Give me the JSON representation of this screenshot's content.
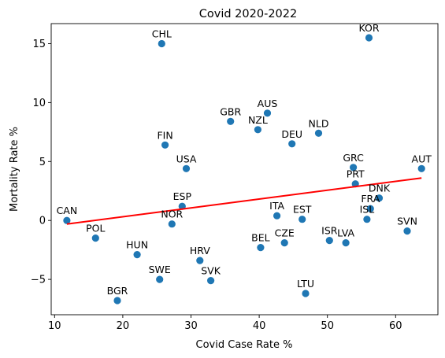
{
  "chart_data": {
    "type": "scatter",
    "title": "Covid 2020-2022",
    "xlabel": "Covid Case Rate %",
    "ylabel": "Mortality Rate %",
    "xlim": [
      9.5,
      66.2
    ],
    "ylim": [
      -8.0,
      16.7
    ],
    "xticks": [
      10,
      20,
      30,
      40,
      50,
      60
    ],
    "yticks": [
      -5,
      0,
      5,
      10,
      15
    ],
    "grid": false,
    "point_color": "#1f77b4",
    "trend_color": "#ff0000",
    "points": [
      {
        "label": "CAN",
        "x": 11.8,
        "y": 0.0
      },
      {
        "label": "POL",
        "x": 16.0,
        "y": -1.5
      },
      {
        "label": "BGR",
        "x": 19.2,
        "y": -6.8
      },
      {
        "label": "HUN",
        "x": 22.1,
        "y": -2.9
      },
      {
        "label": "SWE",
        "x": 25.4,
        "y": -5.0
      },
      {
        "label": "CHL",
        "x": 25.7,
        "y": 15.0
      },
      {
        "label": "FIN",
        "x": 26.2,
        "y": 6.4
      },
      {
        "label": "NOR",
        "x": 27.2,
        "y": -0.3
      },
      {
        "label": "ESP",
        "x": 28.7,
        "y": 1.2
      },
      {
        "label": "USA",
        "x": 29.3,
        "y": 4.4
      },
      {
        "label": "HRV",
        "x": 31.3,
        "y": -3.4
      },
      {
        "label": "SVK",
        "x": 32.9,
        "y": -5.1
      },
      {
        "label": "GBR",
        "x": 35.8,
        "y": 8.4
      },
      {
        "label": "NZL",
        "x": 39.8,
        "y": 7.7
      },
      {
        "label": "BEL",
        "x": 40.2,
        "y": -2.3
      },
      {
        "label": "AUS",
        "x": 41.2,
        "y": 9.1
      },
      {
        "label": "ITA",
        "x": 42.6,
        "y": 0.4
      },
      {
        "label": "CZE",
        "x": 43.7,
        "y": -1.9
      },
      {
        "label": "DEU",
        "x": 44.8,
        "y": 6.5
      },
      {
        "label": "EST",
        "x": 46.3,
        "y": 0.1
      },
      {
        "label": "LTU",
        "x": 46.8,
        "y": -6.2
      },
      {
        "label": "NLD",
        "x": 48.7,
        "y": 7.4
      },
      {
        "label": "ISR",
        "x": 50.3,
        "y": -1.7
      },
      {
        "label": "LVA",
        "x": 52.7,
        "y": -1.9
      },
      {
        "label": "GRC",
        "x": 53.8,
        "y": 4.5
      },
      {
        "label": "PRT",
        "x": 54.1,
        "y": 3.1
      },
      {
        "label": "ISL",
        "x": 55.8,
        "y": 0.1
      },
      {
        "label": "KOR",
        "x": 56.1,
        "y": 15.5
      },
      {
        "label": "FRA",
        "x": 56.3,
        "y": 1.0
      },
      {
        "label": "DNK",
        "x": 57.6,
        "y": 1.9
      },
      {
        "label": "SVN",
        "x": 61.7,
        "y": -0.9
      },
      {
        "label": "AUT",
        "x": 63.8,
        "y": 4.4
      }
    ],
    "trendline": {
      "x": [
        11.8,
        63.8
      ],
      "y": [
        -0.3,
        3.6
      ]
    }
  }
}
